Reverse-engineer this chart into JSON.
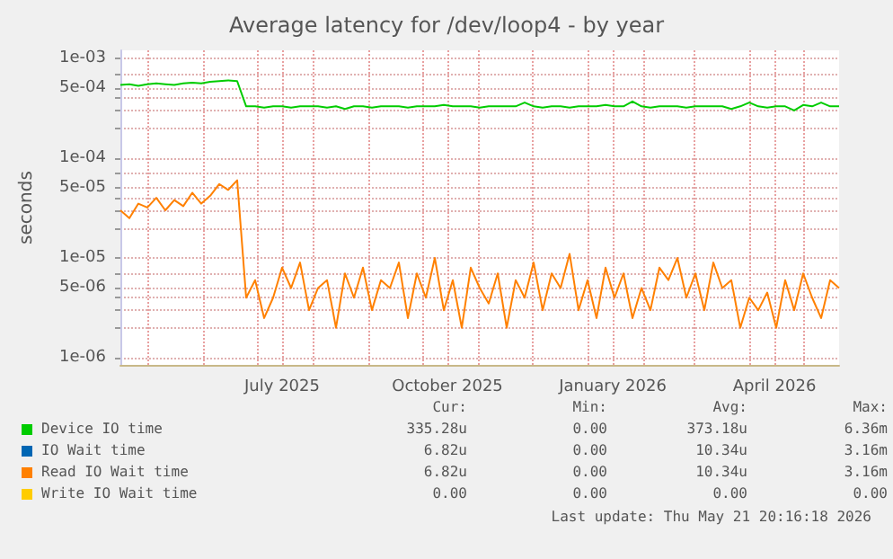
{
  "chart_data": {
    "type": "line",
    "title": "Average latency for /dev/loop4 - by year",
    "ylabel": "seconds",
    "log": "y",
    "grid": true,
    "legend": "bottom",
    "marker": "none",
    "line_style": "solid",
    "xlim": [
      "2025-04-16",
      "2026-05-21"
    ],
    "xticks": [
      {
        "value": "2025-05-01",
        "label": null
      },
      {
        "value": "2025-06-01",
        "label": null
      },
      {
        "value": "2025-07-01",
        "label": null
      },
      {
        "value": "2025-07-15",
        "label": "July 2025"
      },
      {
        "value": "2025-08-01",
        "label": null
      },
      {
        "value": "2025-09-01",
        "label": null
      },
      {
        "value": "2025-10-01",
        "label": null
      },
      {
        "value": "2025-10-15",
        "label": "October 2025"
      },
      {
        "value": "2025-11-01",
        "label": null
      },
      {
        "value": "2025-12-01",
        "label": null
      },
      {
        "value": "2026-01-01",
        "label": null
      },
      {
        "value": "2026-01-15",
        "label": "January 2026"
      },
      {
        "value": "2026-02-01",
        "label": null
      },
      {
        "value": "2026-03-01",
        "label": null
      },
      {
        "value": "2026-04-01",
        "label": null
      },
      {
        "value": "2026-04-15",
        "label": "April 2026"
      },
      {
        "value": "2026-05-01",
        "label": null
      }
    ],
    "ylim": [
      8.5e-07,
      0.0012
    ],
    "yticks": [
      {
        "value": 1e-06,
        "label": "1e-06"
      },
      {
        "value": 2e-06,
        "label": null
      },
      {
        "value": 3e-06,
        "label": null
      },
      {
        "value": 4e-06,
        "label": null
      },
      {
        "value": 5e-06,
        "label": "5e-06"
      },
      {
        "value": 7e-06,
        "label": null
      },
      {
        "value": 1e-05,
        "label": "1e-05"
      },
      {
        "value": 2e-05,
        "label": null
      },
      {
        "value": 3e-05,
        "label": null
      },
      {
        "value": 4e-05,
        "label": null
      },
      {
        "value": 5e-05,
        "label": "5e-05"
      },
      {
        "value": 7e-05,
        "label": null
      },
      {
        "value": 0.0001,
        "label": "1e-04"
      },
      {
        "value": 0.0002,
        "label": null
      },
      {
        "value": 0.0003,
        "label": null
      },
      {
        "value": 0.0004,
        "label": null
      },
      {
        "value": 0.0005,
        "label": "5e-04"
      },
      {
        "value": 0.0007,
        "label": null
      },
      {
        "value": 0.001,
        "label": "1e-03"
      }
    ],
    "x": [
      "2025-04-16",
      "2025-04-21",
      "2025-04-26",
      "2025-05-01",
      "2025-05-06",
      "2025-05-11",
      "2025-05-16",
      "2025-05-21",
      "2025-05-26",
      "2025-05-31",
      "2025-06-05",
      "2025-06-10",
      "2025-06-15",
      "2025-06-20",
      "2025-06-25",
      "2025-06-30",
      "2025-07-05",
      "2025-07-10",
      "2025-07-15",
      "2025-07-20",
      "2025-07-25",
      "2025-07-30",
      "2025-08-04",
      "2025-08-09",
      "2025-08-14",
      "2025-08-19",
      "2025-08-24",
      "2025-08-29",
      "2025-09-03",
      "2025-09-08",
      "2025-09-13",
      "2025-09-18",
      "2025-09-23",
      "2025-09-28",
      "2025-10-03",
      "2025-10-08",
      "2025-10-13",
      "2025-10-18",
      "2025-10-23",
      "2025-10-28",
      "2025-11-02",
      "2025-11-07",
      "2025-11-12",
      "2025-11-17",
      "2025-11-22",
      "2025-11-27",
      "2025-12-02",
      "2025-12-07",
      "2025-12-12",
      "2025-12-17",
      "2025-12-22",
      "2025-12-27",
      "2026-01-01",
      "2026-01-06",
      "2026-01-11",
      "2026-01-16",
      "2026-01-21",
      "2026-01-26",
      "2026-01-31",
      "2026-02-05",
      "2026-02-10",
      "2026-02-15",
      "2026-02-20",
      "2026-02-25",
      "2026-03-02",
      "2026-03-07",
      "2026-03-12",
      "2026-03-17",
      "2026-03-22",
      "2026-03-27",
      "2026-04-01",
      "2026-04-06",
      "2026-04-11",
      "2026-04-16",
      "2026-04-21",
      "2026-04-26",
      "2026-05-01",
      "2026-05-06",
      "2026-05-11",
      "2026-05-16",
      "2026-05-21"
    ],
    "series": [
      {
        "name": "Device IO time",
        "color": "#00cc00",
        "values": [
          0.00054,
          0.00055,
          0.00053,
          0.00055,
          0.00056,
          0.00055,
          0.00054,
          0.00056,
          0.00057,
          0.00056,
          0.00058,
          0.00059,
          0.0006,
          0.00059,
          0.00033,
          0.00033,
          0.00032,
          0.00033,
          0.00033,
          0.00032,
          0.00033,
          0.00033,
          0.00033,
          0.00032,
          0.00033,
          0.00031,
          0.00033,
          0.00033,
          0.00032,
          0.00033,
          0.00033,
          0.00033,
          0.00032,
          0.00033,
          0.00033,
          0.00033,
          0.00034,
          0.00033,
          0.00033,
          0.00033,
          0.00032,
          0.00033,
          0.00033,
          0.00033,
          0.00033,
          0.00036,
          0.00033,
          0.00032,
          0.00033,
          0.00033,
          0.00032,
          0.00033,
          0.00033,
          0.00033,
          0.00034,
          0.00033,
          0.00033,
          0.00037,
          0.00033,
          0.00032,
          0.00033,
          0.00033,
          0.00033,
          0.00032,
          0.00033,
          0.00033,
          0.00033,
          0.00033,
          0.00031,
          0.00033,
          0.00036,
          0.00033,
          0.00032,
          0.00033,
          0.00033,
          0.0003,
          0.00034,
          0.00033,
          0.00036,
          0.00033,
          0.00033
        ]
      },
      {
        "name": "IO Wait time",
        "color": "#0066b3",
        "values": [
          null,
          null,
          null,
          null,
          null,
          null,
          null,
          null,
          null,
          null,
          null,
          null,
          null,
          null,
          null,
          null,
          null,
          null,
          null,
          null,
          null,
          null,
          null,
          null,
          null,
          null,
          null,
          null,
          null,
          null,
          null,
          null,
          null,
          null,
          null,
          null,
          null,
          null,
          null,
          null,
          null,
          null,
          null,
          null,
          null,
          null,
          null,
          null,
          null,
          null,
          null,
          null,
          null,
          null,
          null,
          null,
          null,
          null,
          null,
          null,
          null,
          null,
          null,
          null,
          null,
          null,
          null,
          null,
          null,
          null,
          null,
          null,
          null,
          null,
          null,
          null,
          null,
          null,
          null,
          null,
          null
        ]
      },
      {
        "name": "Read IO Wait time",
        "color": "#ff8000",
        "values": [
          3e-05,
          2.5e-05,
          3.5e-05,
          3.2e-05,
          4e-05,
          3e-05,
          3.8e-05,
          3.3e-05,
          4.5e-05,
          3.5e-05,
          4.2e-05,
          5.5e-05,
          4.8e-05,
          6e-05,
          4e-06,
          6e-06,
          2.5e-06,
          4e-06,
          8e-06,
          5e-06,
          9e-06,
          3e-06,
          5e-06,
          6e-06,
          2e-06,
          7e-06,
          4e-06,
          8e-06,
          3e-06,
          6e-06,
          5e-06,
          9e-06,
          2.5e-06,
          7e-06,
          4e-06,
          1e-05,
          3e-06,
          6e-06,
          2e-06,
          8e-06,
          5e-06,
          3.5e-06,
          7e-06,
          2e-06,
          6e-06,
          4e-06,
          9e-06,
          3e-06,
          7e-06,
          5e-06,
          1.1e-05,
          3e-06,
          6e-06,
          2.5e-06,
          8e-06,
          4e-06,
          7e-06,
          2.5e-06,
          5e-06,
          3e-06,
          8e-06,
          6e-06,
          1e-05,
          4e-06,
          7e-06,
          3e-06,
          9e-06,
          5e-06,
          6e-06,
          2e-06,
          4e-06,
          3e-06,
          4.5e-06,
          2e-06,
          6e-06,
          3e-06,
          7e-06,
          4e-06,
          2.5e-06,
          6e-06,
          5e-06
        ]
      },
      {
        "name": "Write IO Wait time",
        "color": "#ffcc00",
        "values": [
          null,
          null,
          null,
          null,
          null,
          null,
          null,
          null,
          null,
          null,
          null,
          null,
          null,
          null,
          null,
          null,
          null,
          null,
          null,
          null,
          null,
          null,
          null,
          null,
          null,
          null,
          null,
          null,
          null,
          null,
          null,
          null,
          null,
          null,
          null,
          null,
          null,
          null,
          null,
          null,
          null,
          null,
          null,
          null,
          null,
          null,
          null,
          null,
          null,
          null,
          null,
          null,
          null,
          null,
          null,
          null,
          null,
          null,
          null,
          null,
          null,
          null,
          null,
          null,
          null,
          null,
          null,
          null,
          null,
          null,
          null,
          null,
          null,
          null,
          null,
          null,
          null,
          null,
          null,
          null,
          null
        ]
      }
    ],
    "annotations": [
      "Cur:",
      "Min:",
      "Avg:",
      "Max:",
      "335.28u",
      "0.00",
      "373.18u",
      "6.36m",
      "6.82u",
      "0.00",
      "10.34u",
      "3.16m",
      "6.82u",
      "0.00",
      "10.34u",
      "3.16m",
      "0.00",
      "0.00",
      "0.00",
      "0.00",
      "Last update: Thu May 21 20:16:18 2026"
    ]
  }
}
